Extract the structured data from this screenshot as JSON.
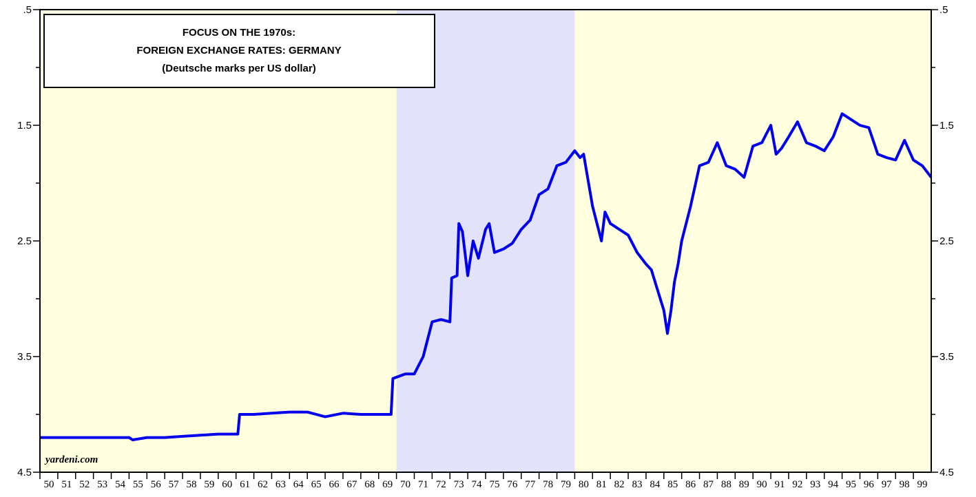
{
  "chart_data": {
    "type": "line",
    "annotations": {
      "title_lines": [
        "FOCUS ON THE 1970s:",
        "FOREIGN EXCHANGE RATES: GERMANY",
        "(Deutsche marks per US dollar)"
      ],
      "source": "yardeni.com"
    },
    "background_color": "#ffffe0",
    "shaded_periods": [
      {
        "start": 1970,
        "end": 1980,
        "color": "#e2e2fa"
      }
    ],
    "xlim": [
      1950,
      2000
    ],
    "xticks": [
      {
        "value": 1950,
        "label": "50"
      },
      {
        "value": 1951,
        "label": "51"
      },
      {
        "value": 1952,
        "label": "52"
      },
      {
        "value": 1953,
        "label": "53"
      },
      {
        "value": 1954,
        "label": "54"
      },
      {
        "value": 1955,
        "label": "55"
      },
      {
        "value": 1956,
        "label": "56"
      },
      {
        "value": 1957,
        "label": "57"
      },
      {
        "value": 1958,
        "label": "58"
      },
      {
        "value": 1959,
        "label": "59"
      },
      {
        "value": 1960,
        "label": "60"
      },
      {
        "value": 1961,
        "label": "61"
      },
      {
        "value": 1962,
        "label": "62"
      },
      {
        "value": 1963,
        "label": "63"
      },
      {
        "value": 1964,
        "label": "64"
      },
      {
        "value": 1965,
        "label": "65"
      },
      {
        "value": 1966,
        "label": "66"
      },
      {
        "value": 1967,
        "label": "67"
      },
      {
        "value": 1968,
        "label": "68"
      },
      {
        "value": 1969,
        "label": "69"
      },
      {
        "value": 1970,
        "label": "70"
      },
      {
        "value": 1971,
        "label": "71"
      },
      {
        "value": 1972,
        "label": "72"
      },
      {
        "value": 1973,
        "label": "73"
      },
      {
        "value": 1974,
        "label": "74"
      },
      {
        "value": 1975,
        "label": "75"
      },
      {
        "value": 1976,
        "label": "76"
      },
      {
        "value": 1977,
        "label": "77"
      },
      {
        "value": 1978,
        "label": "78"
      },
      {
        "value": 1979,
        "label": "79"
      },
      {
        "value": 1980,
        "label": "80"
      },
      {
        "value": 1981,
        "label": "81"
      },
      {
        "value": 1982,
        "label": "82"
      },
      {
        "value": 1983,
        "label": "83"
      },
      {
        "value": 1984,
        "label": "84"
      },
      {
        "value": 1985,
        "label": "85"
      },
      {
        "value": 1986,
        "label": "86"
      },
      {
        "value": 1987,
        "label": "87"
      },
      {
        "value": 1988,
        "label": "88"
      },
      {
        "value": 1989,
        "label": "89"
      },
      {
        "value": 1990,
        "label": "90"
      },
      {
        "value": 1991,
        "label": "91"
      },
      {
        "value": 1992,
        "label": "92"
      },
      {
        "value": 1993,
        "label": "93"
      },
      {
        "value": 1994,
        "label": "94"
      },
      {
        "value": 1995,
        "label": "95"
      },
      {
        "value": 1996,
        "label": "96"
      },
      {
        "value": 1997,
        "label": "97"
      },
      {
        "value": 1998,
        "label": "98"
      },
      {
        "value": 1999,
        "label": "99"
      }
    ],
    "ylim": [
      0.5,
      4.5
    ],
    "y_inverted": true,
    "yticks": [
      {
        "value": 0.5,
        "label": ".5"
      },
      1.5,
      2.5,
      3.5,
      4.5
    ],
    "yticks_minor": [
      1,
      2,
      3,
      4
    ],
    "series": [
      {
        "color": "#0000ee",
        "x": [
          1950,
          1955,
          1955.2,
          1956,
          1957,
          1958,
          1959,
          1960,
          1961.1,
          1961.2,
          1962,
          1963,
          1964,
          1965,
          1966,
          1967,
          1968,
          1969,
          1969.7,
          1969.8,
          1970.5,
          1971,
          1971.5,
          1972,
          1972.5,
          1973,
          1973.1,
          1973.4,
          1973.5,
          1973.7,
          1974,
          1974.3,
          1974.6,
          1975,
          1975.2,
          1975.5,
          1976,
          1976.5,
          1977,
          1977.5,
          1978,
          1978.5,
          1979,
          1979.5,
          1980,
          1980.3,
          1980.5,
          1981,
          1981.5,
          1981.7,
          1982,
          1982.5,
          1983,
          1983.5,
          1984,
          1984.3,
          1984.6,
          1985,
          1985.2,
          1985.4,
          1985.6,
          1985.8,
          1986,
          1986.5,
          1987,
          1987.5,
          1988,
          1988.5,
          1989,
          1989.5,
          1990,
          1990.5,
          1991,
          1991.3,
          1991.6,
          1992,
          1992.5,
          1993,
          1993.5,
          1994,
          1994.5,
          1995,
          1995.5,
          1996,
          1996.5,
          1997,
          1997.5,
          1998,
          1998.5,
          1999,
          1999.5,
          2000
        ],
        "values": [
          4.2,
          4.2,
          4.22,
          4.2,
          4.2,
          4.19,
          4.18,
          4.17,
          4.17,
          4.0,
          4.0,
          3.99,
          3.98,
          3.98,
          4.02,
          3.99,
          4.0,
          4.0,
          4.0,
          3.69,
          3.65,
          3.65,
          3.5,
          3.2,
          3.18,
          3.2,
          2.82,
          2.8,
          2.35,
          2.42,
          2.8,
          2.5,
          2.65,
          2.4,
          2.35,
          2.6,
          2.57,
          2.52,
          2.4,
          2.32,
          2.1,
          2.05,
          1.85,
          1.82,
          1.72,
          1.78,
          1.75,
          2.2,
          2.5,
          2.25,
          2.35,
          2.4,
          2.45,
          2.6,
          2.7,
          2.75,
          2.9,
          3.1,
          3.3,
          3.1,
          2.85,
          2.7,
          2.5,
          2.2,
          1.85,
          1.82,
          1.65,
          1.85,
          1.88,
          1.95,
          1.68,
          1.65,
          1.5,
          1.75,
          1.7,
          1.6,
          1.47,
          1.65,
          1.68,
          1.72,
          1.6,
          1.4,
          1.45,
          1.5,
          1.52,
          1.75,
          1.78,
          1.8,
          1.63,
          1.8,
          1.85,
          1.95
        ]
      }
    ]
  }
}
